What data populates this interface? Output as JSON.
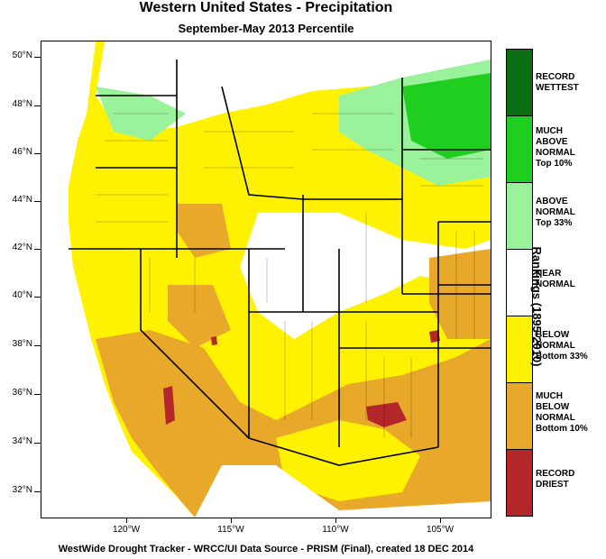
{
  "title": "Western United States - Precipitation",
  "subtitle": "September-May 2013 Percentile",
  "footer": "WestWide Drought Tracker - WRCC/UI  Data Source - PRISM (Final), created 18 DEC 2014",
  "axis_title": "Rankings (1895-2010)",
  "latitude_labels": [
    "50°N",
    "48°N",
    "46°N",
    "44°N",
    "42°N",
    "40°N",
    "38°N",
    "36°N",
    "34°N",
    "32°N"
  ],
  "longitude_labels": [
    "120°W",
    "115°W",
    "110°W",
    "105°W"
  ],
  "legend": [
    {
      "label": "RECORD\nWETTEST",
      "color": "#0a6e12"
    },
    {
      "label": "MUCH\nABOVE\nNORMAL\nTop 10%",
      "color": "#1fcf1f"
    },
    {
      "label": "ABOVE\nNORMAL\nTop 33%",
      "color": "#9af29a"
    },
    {
      "label": "NEAR\nNORMAL",
      "color": "#ffffff"
    },
    {
      "label": "BELOW\nNORMAL\nBottom 33%",
      "color": "#fff200"
    },
    {
      "label": "MUCH\nBELOW\nNORMAL\nBottom 10%",
      "color": "#e8a92a"
    },
    {
      "label": "RECORD\nDRIEST",
      "color": "#b3262a"
    }
  ]
}
